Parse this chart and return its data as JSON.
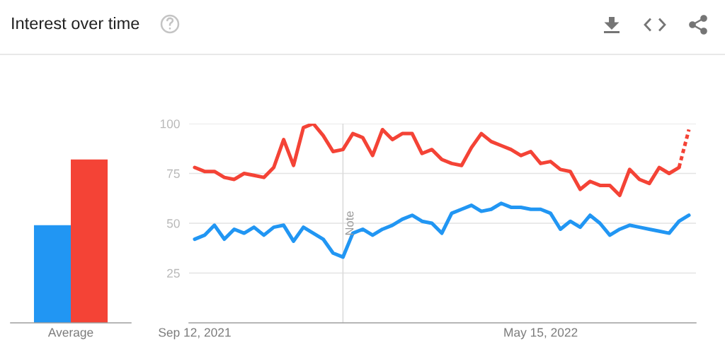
{
  "chart_data": [
    {
      "type": "bar",
      "title": "Interest over time",
      "categories": [
        "Average"
      ],
      "series": [
        {
          "color": "#2196f3",
          "values": [
            49
          ]
        },
        {
          "color": "#f44336",
          "values": [
            82
          ]
        }
      ],
      "ylim": [
        0,
        100
      ],
      "tick_labels": "x"
    },
    {
      "type": "line",
      "x": [
        "2021-09-12",
        "2021-09-19",
        "2021-09-26",
        "2021-10-03",
        "2021-10-10",
        "2021-10-17",
        "2021-10-24",
        "2021-10-31",
        "2021-11-07",
        "2021-11-14",
        "2021-11-21",
        "2021-11-28",
        "2021-12-05",
        "2021-12-12",
        "2021-12-19",
        "2021-12-26",
        "2022-01-02",
        "2022-01-09",
        "2022-01-16",
        "2022-01-23",
        "2022-01-30",
        "2022-02-06",
        "2022-02-13",
        "2022-02-20",
        "2022-02-27",
        "2022-03-06",
        "2022-03-13",
        "2022-03-20",
        "2022-03-27",
        "2022-04-03",
        "2022-04-10",
        "2022-04-17",
        "2022-04-24",
        "2022-05-01",
        "2022-05-08",
        "2022-05-15",
        "2022-05-22",
        "2022-05-29",
        "2022-06-05",
        "2022-06-12",
        "2022-06-19",
        "2022-06-26",
        "2022-07-03",
        "2022-07-10",
        "2022-07-17",
        "2022-07-24",
        "2022-07-31",
        "2022-08-07",
        "2022-08-14",
        "2022-08-21",
        "2022-08-28"
      ],
      "xlim": [
        "2021-09-08",
        "2022-09-02"
      ],
      "xticks": [
        {
          "value": "2021-09-12",
          "label": "Sep 12, 2021"
        },
        {
          "value": "2022-05-15",
          "label": "May 15, 2022"
        }
      ],
      "ylim": [
        0,
        100
      ],
      "yticks": [
        25,
        50,
        75,
        100
      ],
      "grid": "y",
      "line_style": "solid",
      "series": [
        {
          "color": "#2196f3",
          "values": [
            42,
            44,
            49,
            42,
            47,
            45,
            48,
            44,
            48,
            49,
            41,
            48,
            45,
            42,
            35,
            33,
            45,
            47,
            44,
            47,
            49,
            52,
            54,
            51,
            50,
            45,
            55,
            57,
            59,
            56,
            57,
            60,
            58,
            58,
            57,
            57,
            55,
            47,
            51,
            48,
            54,
            50,
            44,
            47,
            49,
            48,
            47,
            46,
            45,
            51,
            54
          ]
        },
        {
          "color": "#f44336",
          "values": [
            78,
            76,
            76,
            73,
            72,
            75,
            74,
            73,
            78,
            92,
            79,
            98,
            100,
            94,
            86,
            87,
            95,
            93,
            84,
            97,
            92,
            95,
            95,
            85,
            87,
            82,
            80,
            79,
            88,
            95,
            91,
            89,
            87,
            84,
            86,
            80,
            81,
            77,
            76,
            67,
            71,
            69,
            69,
            64,
            77,
            72,
            70,
            78,
            75,
            78,
            null
          ]
        },
        {
          "color": "#f44336",
          "line_style": "dotted",
          "x": [
            "2022-08-21",
            "2022-08-28"
          ],
          "values": [
            78,
            97
          ]
        }
      ],
      "ref_lines": [
        {
          "axis": "x",
          "value": "2021-12-26",
          "label": "Note",
          "color": "#dadada"
        }
      ]
    }
  ]
}
